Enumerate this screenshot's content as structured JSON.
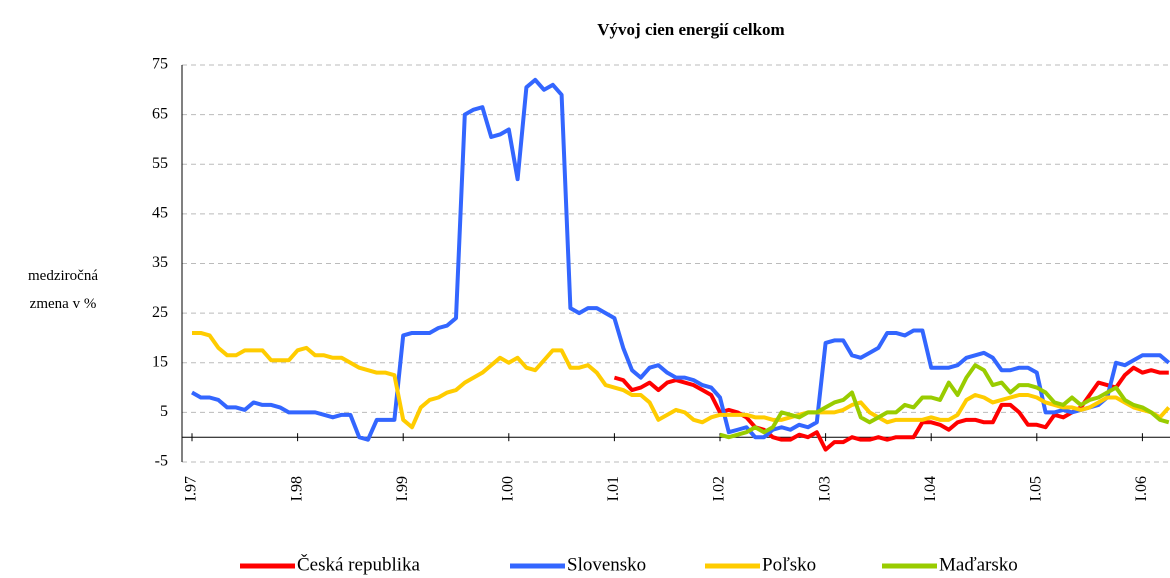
{
  "chart_data": {
    "type": "line",
    "title": "Vývoj cien energií celkom",
    "y_label": "medziročná zmena v %",
    "categories": [
      "I.97",
      null,
      null,
      null,
      null,
      null,
      null,
      null,
      null,
      null,
      null,
      null,
      "I.98",
      null,
      null,
      null,
      null,
      null,
      null,
      null,
      null,
      null,
      null,
      null,
      "I.99",
      null,
      null,
      null,
      null,
      null,
      null,
      null,
      null,
      null,
      null,
      null,
      "I.00",
      null,
      null,
      null,
      null,
      null,
      null,
      null,
      null,
      null,
      null,
      null,
      "I.01",
      null,
      null,
      null,
      null,
      null,
      null,
      null,
      null,
      null,
      null,
      null,
      "I.02",
      null,
      null,
      null,
      null,
      null,
      null,
      null,
      null,
      null,
      null,
      null,
      "I.03",
      null,
      null,
      null,
      null,
      null,
      null,
      null,
      null,
      null,
      null,
      null,
      "I.04",
      null,
      null,
      null,
      null,
      null,
      null,
      null,
      null,
      null,
      null,
      null,
      "I.05",
      null,
      null,
      null,
      null,
      null,
      null,
      null,
      null,
      null,
      null,
      null,
      "I.06",
      null,
      null,
      null
    ],
    "series": [
      {
        "name": "Česká republika",
        "color": "#ff0000",
        "values": [
          null,
          null,
          null,
          null,
          null,
          null,
          null,
          null,
          null,
          null,
          null,
          null,
          null,
          null,
          null,
          null,
          null,
          null,
          null,
          null,
          null,
          null,
          null,
          null,
          null,
          null,
          null,
          null,
          null,
          null,
          null,
          null,
          null,
          null,
          null,
          null,
          null,
          null,
          null,
          null,
          null,
          null,
          null,
          null,
          null,
          null,
          null,
          null,
          12,
          11.5,
          9.5,
          10,
          11,
          9.5,
          11,
          11.5,
          11,
          10.5,
          9.5,
          8.5,
          5,
          5.5,
          5,
          4,
          2,
          1.5,
          0,
          -0.5,
          -0.5,
          0.5,
          0,
          1,
          -2.5,
          -1,
          -1,
          0,
          -0.5,
          -0.5,
          0,
          -0.5,
          0,
          0,
          0,
          3,
          3,
          2.5,
          1.5,
          3,
          3.5,
          3.5,
          3,
          3,
          6.5,
          6.5,
          5,
          2.5,
          2.5,
          2,
          4.5,
          4,
          5,
          6,
          8.5,
          11,
          10.5,
          10,
          12.5,
          14,
          13,
          13.5,
          13,
          13
        ]
      },
      {
        "name": "Slovensko",
        "color": "#3366ff",
        "values": [
          9,
          8,
          8,
          7.5,
          6,
          6,
          5.5,
          7,
          6.5,
          6.5,
          6,
          5,
          5,
          5,
          5,
          4.5,
          4,
          4.5,
          4.5,
          0,
          -0.5,
          3.5,
          3.5,
          3.5,
          20.5,
          21,
          21,
          21,
          22,
          22.5,
          24,
          65,
          66,
          66.5,
          60.5,
          61,
          62,
          52,
          70.5,
          72,
          70,
          71,
          69,
          26,
          25,
          26,
          26,
          25,
          24,
          18,
          13.5,
          12,
          14,
          14.5,
          13,
          12,
          12,
          11.5,
          10.5,
          10,
          8,
          1,
          1.5,
          2,
          0,
          0,
          1.5,
          2,
          1.5,
          2.5,
          2,
          3,
          19,
          19.5,
          19.5,
          16.5,
          16,
          17,
          18,
          21,
          21,
          20.5,
          21.5,
          21.5,
          14,
          14,
          14,
          14.5,
          16,
          16.5,
          17,
          16,
          13.5,
          13.5,
          14,
          14,
          13,
          5,
          5,
          5.5,
          5,
          5.5,
          6,
          6.5,
          8,
          15,
          14.5,
          15.5,
          16.5,
          16.5,
          16.5,
          15
        ]
      },
      {
        "name": "Poľsko",
        "color": "#ffcc00",
        "values": [
          21,
          21,
          20.5,
          18,
          16.5,
          16.5,
          17.5,
          17.5,
          17.5,
          15.5,
          15.5,
          15.5,
          17.5,
          18,
          16.5,
          16.5,
          16,
          16,
          15,
          14,
          13.5,
          13,
          13,
          12.5,
          3.5,
          2,
          6,
          7.5,
          8,
          9,
          9.5,
          11,
          12,
          13,
          14.5,
          16,
          15,
          16,
          14,
          13.5,
          15.5,
          17.5,
          17.5,
          14,
          14,
          14.5,
          13,
          10.5,
          10,
          9.5,
          8.5,
          8.5,
          7,
          3.5,
          4.5,
          5.5,
          5,
          3.5,
          3,
          4,
          4.5,
          4.5,
          4.5,
          4.5,
          4,
          4,
          3.5,
          3.5,
          4,
          4.5,
          5,
          5,
          5,
          5,
          5.5,
          6.5,
          7,
          5,
          4,
          3,
          3.5,
          3.5,
          3.5,
          3.5,
          4,
          3.5,
          3.5,
          4.5,
          7.5,
          8.5,
          8,
          7,
          7.5,
          8,
          8.5,
          8.5,
          8,
          7,
          6.5,
          6,
          6,
          5.5,
          6,
          7,
          8,
          8,
          7,
          6,
          5.5,
          5,
          4,
          6
        ]
      },
      {
        "name": "Maďarsko",
        "color": "#99cc00",
        "values": [
          null,
          null,
          null,
          null,
          null,
          null,
          null,
          null,
          null,
          null,
          null,
          null,
          null,
          null,
          null,
          null,
          null,
          null,
          null,
          null,
          null,
          null,
          null,
          null,
          null,
          null,
          null,
          null,
          null,
          null,
          null,
          null,
          null,
          null,
          null,
          null,
          null,
          null,
          null,
          null,
          null,
          null,
          null,
          null,
          null,
          null,
          null,
          null,
          null,
          null,
          null,
          null,
          null,
          null,
          null,
          null,
          null,
          null,
          null,
          null,
          0.5,
          0,
          0.5,
          1,
          2,
          1,
          2,
          5,
          4.5,
          4,
          5,
          5,
          6,
          7,
          7.5,
          9,
          4,
          3,
          4,
          5,
          5,
          6.5,
          6,
          8,
          8,
          7.5,
          11,
          8.5,
          12,
          14.5,
          13.5,
          10.5,
          11,
          9,
          10.5,
          10.5,
          10,
          9,
          7,
          6.5,
          8,
          6.5,
          7.5,
          8,
          9,
          10,
          7.5,
          6.5,
          6,
          5,
          3.5,
          3
        ]
      }
    ],
    "ylim": [
      -5,
      75
    ],
    "yticks": [
      -5,
      5,
      15,
      25,
      35,
      45,
      55,
      65,
      75
    ],
    "grid": true,
    "legend": "bottom"
  }
}
